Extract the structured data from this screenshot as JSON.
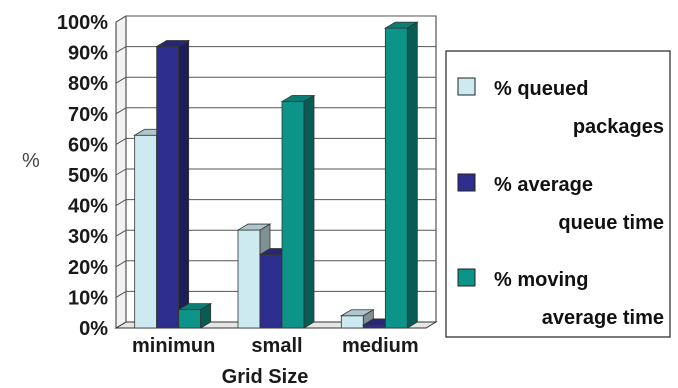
{
  "chart_data": {
    "type": "bar",
    "categories": [
      "minimun",
      "small",
      "medium"
    ],
    "series": [
      {
        "name": "% queued packages",
        "values": [
          63,
          32,
          4
        ],
        "color": "#cdeaf0"
      },
      {
        "name": "% average queue time",
        "values": [
          92,
          24,
          1
        ],
        "color": "#2e2e8f"
      },
      {
        "name": "% moving average time",
        "values": [
          6,
          74,
          98
        ],
        "color": "#0d9488"
      }
    ],
    "ylim": [
      0,
      100
    ],
    "yticks": [
      "0%",
      "10%",
      "20%",
      "30%",
      "40%",
      "50%",
      "60%",
      "70%",
      "80%",
      "90%",
      "100%"
    ],
    "ylabel": "%",
    "xlabel": "Grid Size",
    "legend": {
      "placement": "right",
      "entries": [
        {
          "lines": [
            "% queued",
            "packages"
          ]
        },
        {
          "lines": [
            "% average",
            "queue time"
          ]
        },
        {
          "lines": [
            "% moving",
            "average time"
          ]
        }
      ]
    },
    "style": "3d-clustered-bar"
  }
}
